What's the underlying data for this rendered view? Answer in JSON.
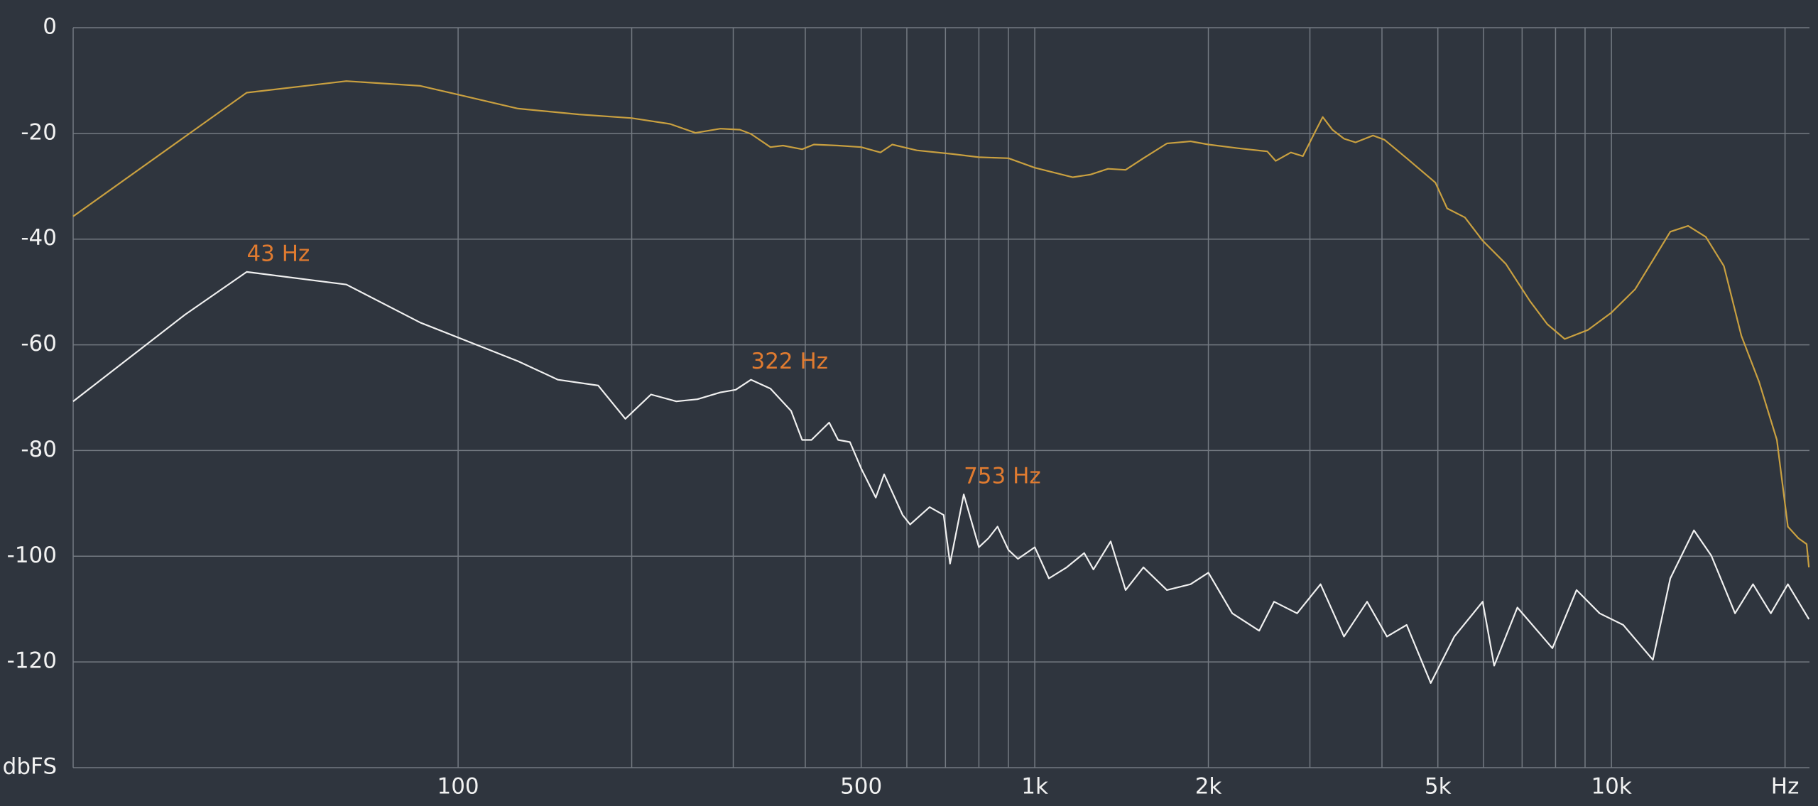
{
  "chart_data": {
    "type": "line",
    "log_x": true,
    "grid": true,
    "background": "#2f353e",
    "xlim": [
      21.5,
      22050
    ],
    "ylim": [
      -140,
      0
    ],
    "xticks": [
      100,
      {
        "value": 200,
        "label": null
      },
      {
        "value": 300,
        "label": null
      },
      {
        "value": 400,
        "label": null
      },
      500,
      {
        "value": 600,
        "label": null
      },
      {
        "value": 700,
        "label": null
      },
      {
        "value": 800,
        "label": null
      },
      {
        "value": 900,
        "label": null
      },
      {
        "value": 1000,
        "label": "1k"
      },
      {
        "value": 2000,
        "label": "2k"
      },
      {
        "value": 3000,
        "label": null
      },
      {
        "value": 4000,
        "label": null
      },
      {
        "value": 5000,
        "label": "5k"
      },
      {
        "value": 6000,
        "label": null
      },
      {
        "value": 7000,
        "label": null
      },
      {
        "value": 8000,
        "label": null
      },
      {
        "value": 9000,
        "label": null
      },
      {
        "value": 10000,
        "label": "10k"
      },
      {
        "value": 20000,
        "label": "Hz"
      }
    ],
    "yticks": [
      0,
      -20,
      -40,
      -60,
      -80,
      -100,
      -120,
      {
        "value": -140,
        "label": "dbFS"
      }
    ],
    "series": [
      {
        "color": "#c9a040",
        "x": [
          21.5,
          43,
          64,
          86,
          127,
          162,
          200,
          233,
          258,
          285,
          308,
          322,
          348,
          366,
          395,
          414,
          456,
          500,
          540,
          566,
          624,
          720,
          800,
          900,
          1000,
          1163,
          1248,
          1340,
          1437,
          1543,
          1695,
          1863,
          2000,
          2249,
          2530,
          2617,
          2780,
          2917,
          3056,
          3158,
          3281,
          3437,
          3600,
          3860,
          4040,
          4415,
          4950,
          5190,
          5570,
          5980,
          6560,
          7220,
          7740,
          8300,
          9100,
          10000,
          10990,
          11800,
          12650,
          13580,
          14580,
          15670,
          16800,
          18030,
          19360,
          20230,
          21100,
          21800,
          22000
        ],
        "values": [
          -35.7,
          -12.3,
          -10.1,
          -11.0,
          -15.3,
          -16.4,
          -17.1,
          -18.2,
          -19.9,
          -19.1,
          -19.3,
          -20.1,
          -22.6,
          -22.3,
          -23.0,
          -22.1,
          -22.3,
          -22.6,
          -23.6,
          -22.1,
          -23.2,
          -23.9,
          -24.5,
          -24.7,
          -26.5,
          -28.3,
          -27.8,
          -26.7,
          -26.9,
          -24.7,
          -21.9,
          -21.5,
          -22.1,
          -22.8,
          -23.4,
          -25.2,
          -23.6,
          -24.3,
          -19.9,
          -16.9,
          -19.3,
          -21.0,
          -21.7,
          -20.4,
          -21.2,
          -24.7,
          -29.3,
          -34.2,
          -35.9,
          -40.3,
          -44.7,
          -51.7,
          -56.1,
          -58.9,
          -57.2,
          -53.9,
          -49.5,
          -44.0,
          -38.6,
          -37.5,
          -39.6,
          -45.1,
          -58.3,
          -67.0,
          -78.0,
          -94.4,
          -96.6,
          -97.7,
          -102.1
        ]
      },
      {
        "color": "#f0f0f0",
        "x": [
          21.5,
          33.6,
          43,
          64,
          86,
          127,
          149,
          175,
          195,
          216,
          239,
          260,
          285,
          303,
          322,
          348,
          378,
          395,
          410,
          440,
          456,
          478,
          500,
          530,
          548,
          590,
          608,
          657,
          695,
          713,
          753,
          800,
          831,
          862,
          900,
          935,
          1000,
          1058,
          1136,
          1218,
          1264,
          1354,
          1437,
          1543,
          1695,
          1863,
          2000,
          2200,
          2450,
          2600,
          2850,
          3130,
          3437,
          3770,
          4080,
          4415,
          4860,
          5340,
          5980,
          6260,
          6870,
          7900,
          8700,
          9540,
          10480,
          11800,
          12650,
          13900,
          14900,
          16380,
          17600,
          18900,
          20230,
          22000
        ],
        "values": [
          -70.7,
          -54.3,
          -46.2,
          -48.6,
          -55.8,
          -63.1,
          -66.6,
          -67.7,
          -74.0,
          -69.4,
          -70.7,
          -70.3,
          -69.0,
          -68.5,
          -66.6,
          -68.3,
          -72.5,
          -78.0,
          -78.0,
          -74.7,
          -78.0,
          -78.4,
          -83.4,
          -88.9,
          -84.5,
          -92.2,
          -94.0,
          -90.7,
          -92.2,
          -101.4,
          -88.3,
          -98.3,
          -96.6,
          -94.4,
          -98.8,
          -100.5,
          -98.3,
          -104.2,
          -102.1,
          -99.4,
          -102.5,
          -97.2,
          -106.4,
          -102.1,
          -106.4,
          -105.3,
          -103.1,
          -110.8,
          -114.1,
          -108.6,
          -110.8,
          -105.3,
          -115.2,
          -108.6,
          -115.2,
          -113.0,
          -124.0,
          -115.2,
          -108.6,
          -120.7,
          -109.7,
          -117.4,
          -106.4,
          -110.8,
          -113.0,
          -119.6,
          -104.2,
          -95.1,
          -99.9,
          -110.8,
          -105.3,
          -110.8,
          -105.3,
          -111.9
        ]
      }
    ],
    "annotations": [
      {
        "text": "43 Hz",
        "x": 43,
        "y": -46.2
      },
      {
        "text": "322 Hz",
        "x": 322,
        "y": -66.6
      },
      {
        "text": "753 Hz",
        "x": 753,
        "y": -88.3
      }
    ],
    "annotation_color": "#e07b30"
  }
}
